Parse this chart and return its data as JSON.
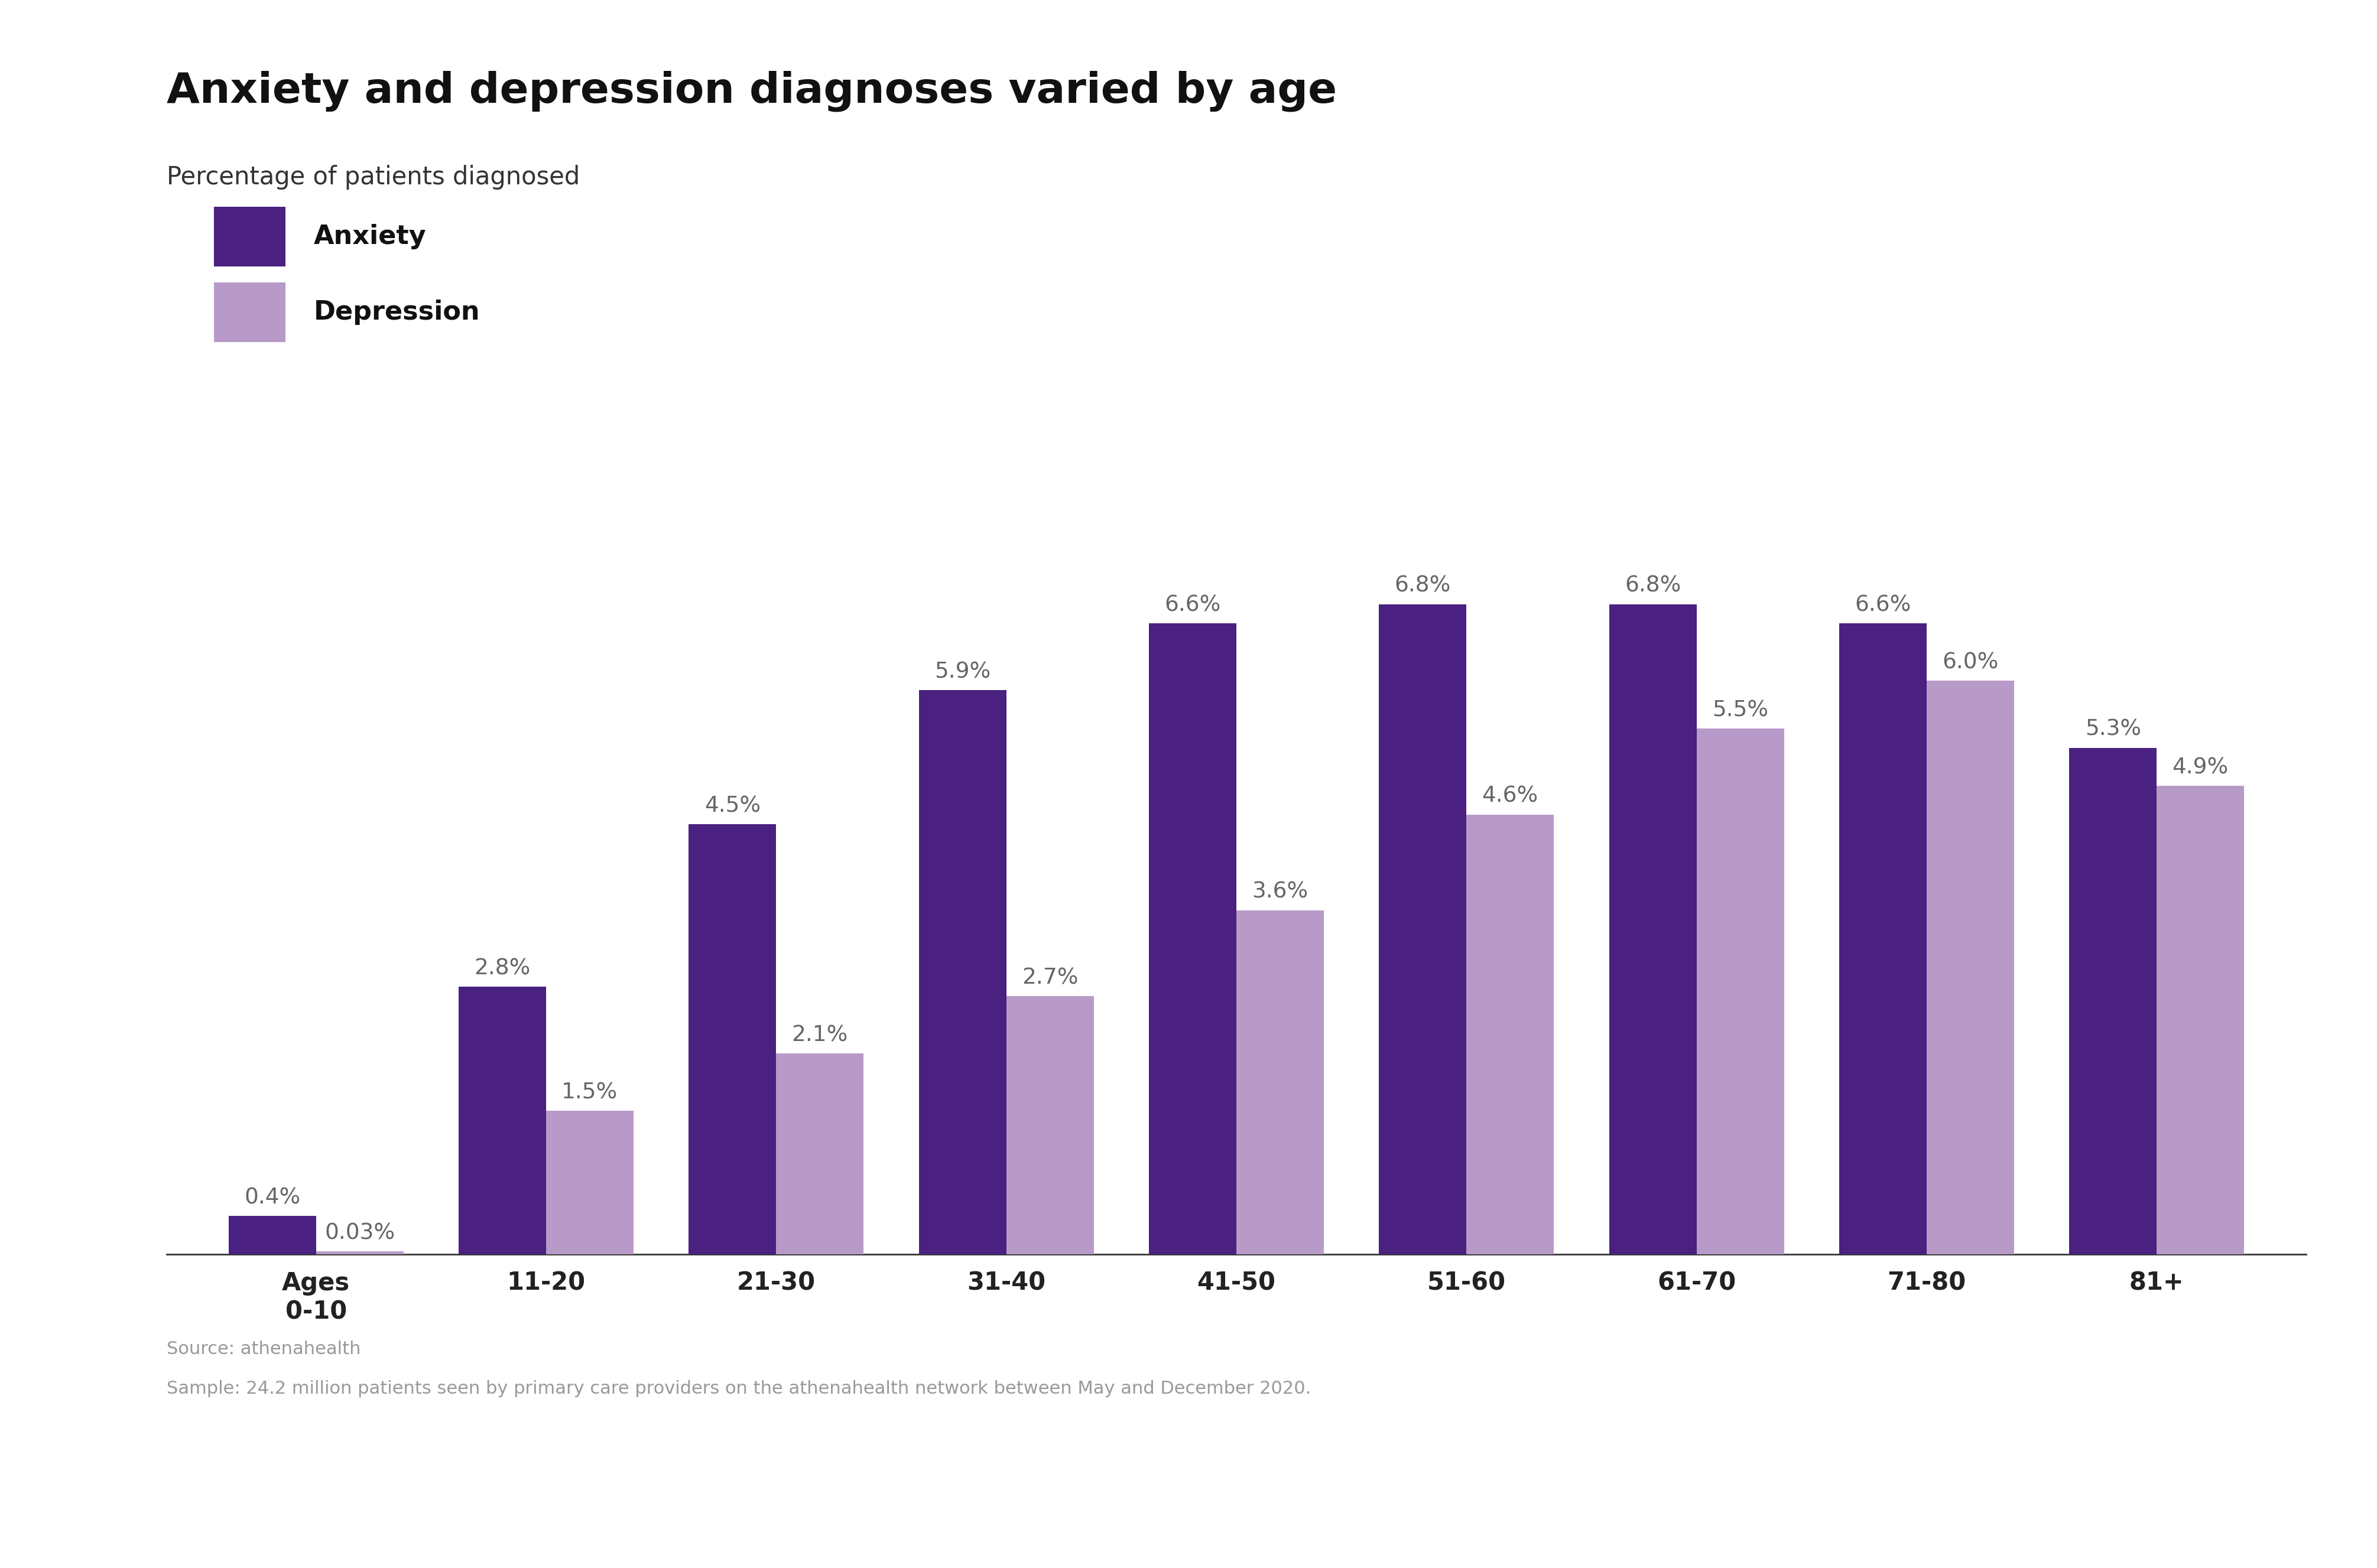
{
  "title": "Anxiety and depression diagnoses varied by age",
  "subtitle": "Percentage of patients diagnosed",
  "categories": [
    "Ages\n0-10",
    "11-20",
    "21-30",
    "31-40",
    "41-50",
    "51-60",
    "61-70",
    "71-80",
    "81+"
  ],
  "anxiety_values": [
    0.4,
    2.8,
    4.5,
    5.9,
    6.6,
    6.8,
    6.8,
    6.6,
    5.3
  ],
  "depression_values": [
    0.03,
    1.5,
    2.1,
    2.7,
    3.6,
    4.6,
    5.5,
    6.0,
    4.9
  ],
  "anxiety_labels": [
    "0.4%",
    "2.8%",
    "4.5%",
    "5.9%",
    "6.6%",
    "6.8%",
    "6.8%",
    "6.6%",
    "5.3%"
  ],
  "depression_labels": [
    "0.03%",
    "1.5%",
    "2.1%",
    "2.7%",
    "3.6%",
    "4.6%",
    "5.5%",
    "6.0%",
    "4.9%"
  ],
  "anxiety_color": "#4a2080",
  "depression_color": "#b89ac8",
  "background_color": "#ffffff",
  "title_fontsize": 52,
  "subtitle_fontsize": 30,
  "label_fontsize": 27,
  "tick_fontsize": 30,
  "legend_fontsize": 32,
  "source_text_line1": "Source: athenahealth",
  "source_text_line2": "Sample: 24.2 million patients seen by primary care providers on the athenahealth network between May and December 2020.",
  "source_fontsize": 22,
  "ylim": [
    0,
    8.2
  ],
  "bar_width": 0.38
}
